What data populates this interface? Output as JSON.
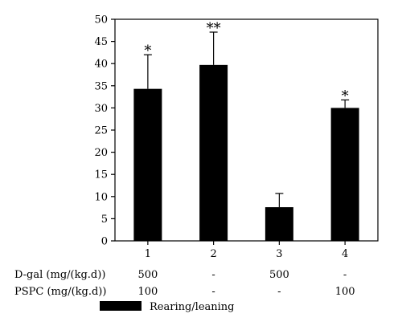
{
  "chart_data": {
    "type": "bar",
    "categories": [
      "1",
      "2",
      "3",
      "4"
    ],
    "series": [
      {
        "name": "Rearing/leaning",
        "values": [
          34.3,
          39.7,
          7.6,
          30.0
        ],
        "errors": [
          7.7,
          7.4,
          3.1,
          1.8
        ],
        "significance": [
          "*",
          "**",
          "",
          "*"
        ]
      }
    ],
    "ylim": [
      0,
      50
    ],
    "yticks": [
      0,
      5,
      10,
      15,
      20,
      25,
      30,
      35,
      40,
      45,
      50
    ],
    "bar_color": "#000000",
    "grid": false,
    "legend_position": "bottom",
    "treatment_table": [
      {
        "label": "D-gal (mg/(kg.d))",
        "values": [
          "500",
          "-",
          "500",
          "-"
        ]
      },
      {
        "label": "PSPC (mg/(kg.d))",
        "values": [
          "100",
          "-",
          "-",
          "100"
        ]
      }
    ]
  }
}
